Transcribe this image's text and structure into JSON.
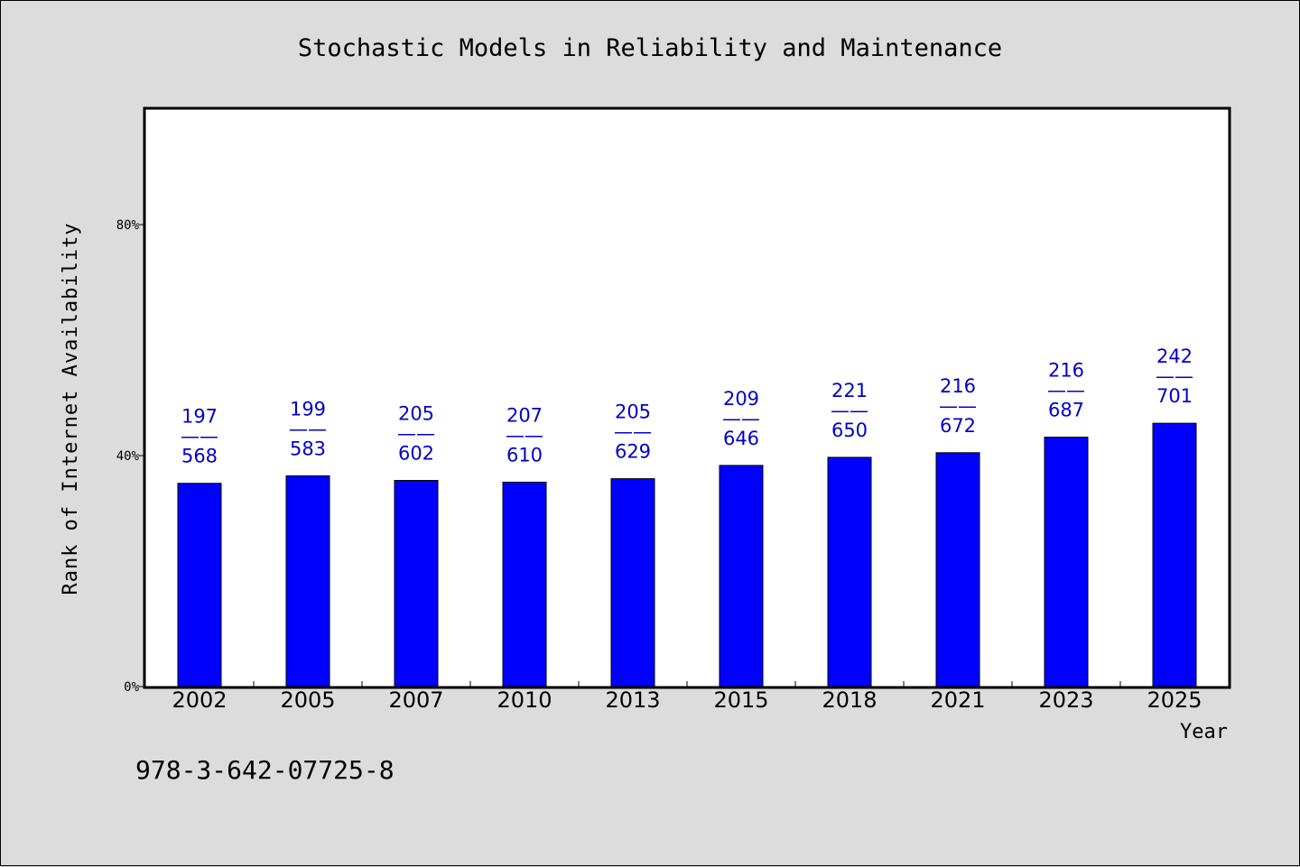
{
  "chart_data": {
    "type": "bar",
    "title": "Stochastic Models in Reliability and Maintenance",
    "xlabel": "Year",
    "ylabel": "Rank of Internet Availability",
    "categories": [
      "2002",
      "2005",
      "2007",
      "2010",
      "2013",
      "2015",
      "2018",
      "2021",
      "2023",
      "2025"
    ],
    "values": [
      35.2,
      36.5,
      35.7,
      35.4,
      36.0,
      38.3,
      39.7,
      40.5,
      43.2,
      45.6
    ],
    "data_labels": [
      {
        "top": "197",
        "sep": "——",
        "bottom": "568"
      },
      {
        "top": "199",
        "sep": "——",
        "bottom": "583"
      },
      {
        "top": "205",
        "sep": "——",
        "bottom": "602"
      },
      {
        "top": "207",
        "sep": "——",
        "bottom": "610"
      },
      {
        "top": "205",
        "sep": "——",
        "bottom": "629"
      },
      {
        "top": "209",
        "sep": "——",
        "bottom": "646"
      },
      {
        "top": "221",
        "sep": "——",
        "bottom": "650"
      },
      {
        "top": "216",
        "sep": "——",
        "bottom": "672"
      },
      {
        "top": "216",
        "sep": "——",
        "bottom": "687"
      },
      {
        "top": "242",
        "sep": "——",
        "bottom": "701"
      }
    ],
    "ylim": [
      0,
      100
    ],
    "yticks": [
      0,
      40,
      80
    ],
    "ytick_labels": [
      "0%",
      "40%",
      "80%"
    ],
    "grid": false,
    "bar_color": "#0000ff",
    "label_color": "#0000cc",
    "background_color": "#dcdcdc",
    "plot_background_color": "#ffffff"
  },
  "footer": {
    "isbn": "978-3-642-07725-8"
  }
}
